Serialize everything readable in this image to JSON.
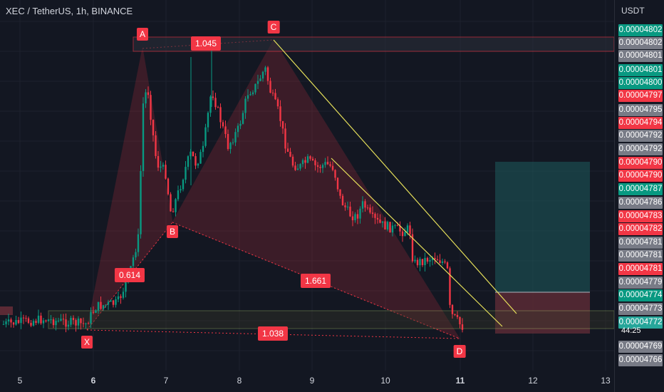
{
  "header": {
    "title": "XEC / TetherUS, 1h, BINANCE"
  },
  "axis": {
    "unit": "USDT",
    "countdown": "44:25"
  },
  "colors": {
    "up": "#089981",
    "down": "#f23645",
    "neutral": "#787b86",
    "pattern": "#f23645",
    "trend": "#e6e05a",
    "target": "#1e5b5c"
  },
  "chart_data": {
    "type": "candlestick",
    "title": "XEC / TetherUS, 1h, BINANCE",
    "x_ticks": [
      "5",
      "6",
      "7",
      "8",
      "9",
      "10",
      "11",
      "12",
      "13"
    ],
    "bold_ticks": [
      "6",
      "11"
    ],
    "y_labels": [
      {
        "text": "0.00004802",
        "color": "#089981"
      },
      {
        "text": "0.00004802",
        "color": "#787b86"
      },
      {
        "text": "0.00004801",
        "color": "#787b86"
      },
      {
        "text": "0.00004801",
        "color": "#089981"
      },
      {
        "text": "0.00004800",
        "color": "#089981"
      },
      {
        "text": "0.00004797",
        "color": "#f23645"
      },
      {
        "text": "0.00004795",
        "color": "#787b86"
      },
      {
        "text": "0.00004794",
        "color": "#f23645"
      },
      {
        "text": "0.00004792",
        "color": "#787b86"
      },
      {
        "text": "0.00004792",
        "color": "#787b86"
      },
      {
        "text": "0.00004790",
        "color": "#f23645"
      },
      {
        "text": "0.00004790",
        "color": "#f23645"
      },
      {
        "text": "0.00004787",
        "color": "#089981"
      },
      {
        "text": "0.00004786",
        "color": "#787b86"
      },
      {
        "text": "0.00004783",
        "color": "#f23645"
      },
      {
        "text": "0.00004782",
        "color": "#f23645"
      },
      {
        "text": "0.00004781",
        "color": "#787b86"
      },
      {
        "text": "0.00004781",
        "color": "#787b86"
      },
      {
        "text": "0.00004781",
        "color": "#f23645"
      },
      {
        "text": "0.00004779",
        "color": "#787b86"
      },
      {
        "text": "0.00004774",
        "color": "#089981"
      },
      {
        "text": "0.00004773",
        "color": "#787b86"
      },
      {
        "text": "0.00004772",
        "color": "#26a69a"
      },
      {
        "text": "0.00004769",
        "color": "#787b86"
      },
      {
        "text": "0.00004766",
        "color": "#787b86"
      }
    ],
    "pattern_points": [
      "X",
      "A",
      "B",
      "C",
      "D"
    ],
    "ratios": [
      "0.614",
      "1.045",
      "1.661",
      "1.038"
    ]
  }
}
